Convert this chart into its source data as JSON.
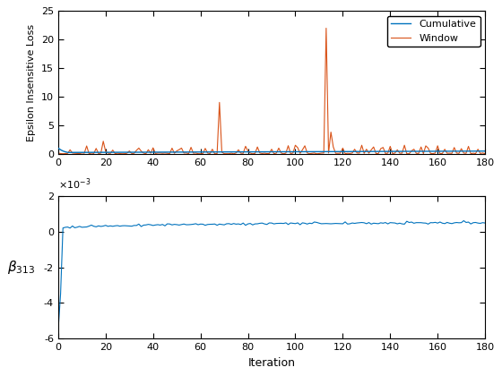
{
  "top_plot": {
    "ylabel": "Epsilon Insensitive Loss",
    "ylim": [
      0,
      25
    ],
    "xlim": [
      0,
      180
    ],
    "xticks": [
      0,
      20,
      40,
      60,
      80,
      100,
      120,
      140,
      160,
      180
    ],
    "yticks": [
      0,
      5,
      10,
      15,
      20,
      25
    ],
    "cumulative_color": "#0072BD",
    "window_color": "#D95319",
    "legend_labels": [
      "Cumulative",
      "Window"
    ],
    "legend_loc": "upper right"
  },
  "bottom_plot": {
    "ylabel": "$\\beta_{313}$",
    "xlabel": "Iteration",
    "ylim": [
      -0.006,
      0.002
    ],
    "xlim": [
      0,
      180
    ],
    "xticks": [
      0,
      20,
      40,
      60,
      80,
      100,
      120,
      140,
      160,
      180
    ],
    "yticks": [
      -0.006,
      -0.004,
      -0.002,
      0,
      0.002
    ],
    "line_color": "#0072BD"
  },
  "figure": {
    "facecolor": "#ffffff",
    "dpi": 100,
    "figsize": [
      5.6,
      4.2
    ]
  }
}
